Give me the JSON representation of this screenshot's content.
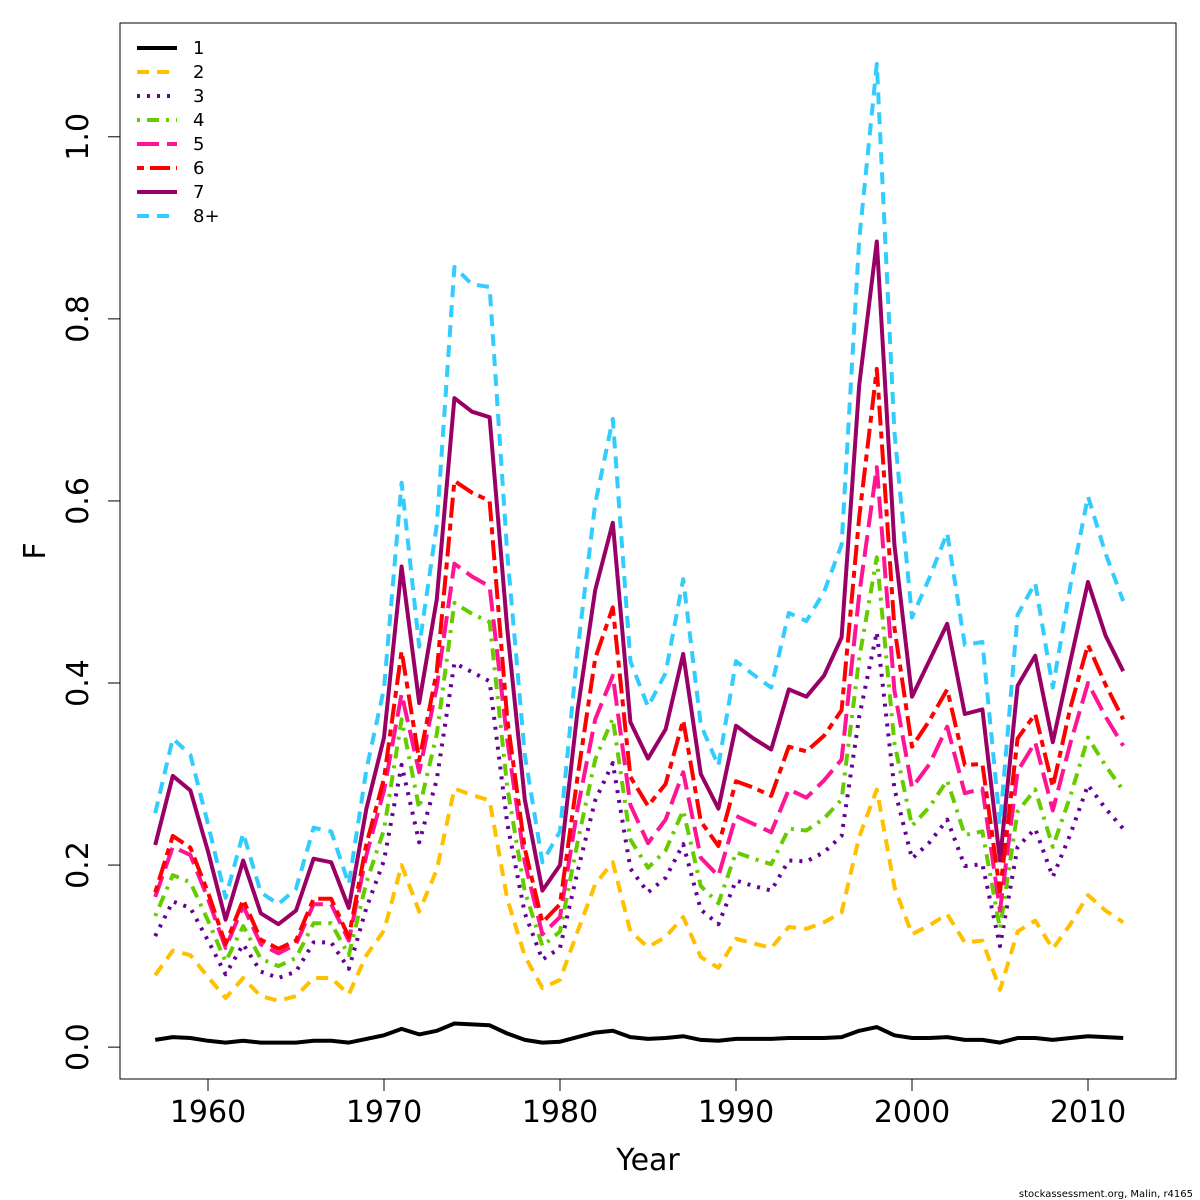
{
  "chart_data": {
    "type": "line",
    "xlabel": "Year",
    "ylabel": "F",
    "xlim": [
      1955,
      2015
    ],
    "ylim": [
      -0.035,
      1.125
    ],
    "xticks": [
      1960,
      1970,
      1980,
      1990,
      2000,
      2010
    ],
    "yticks": [
      0.0,
      0.2,
      0.4,
      0.6,
      0.8,
      1.0
    ],
    "ytick_labels": [
      "0.0",
      "0.2",
      "0.4",
      "0.6",
      "0.8",
      "1.0"
    ],
    "grid": false,
    "legend_position": "top-left",
    "x": [
      1957,
      1958,
      1959,
      1960,
      1961,
      1962,
      1963,
      1964,
      1965,
      1966,
      1967,
      1968,
      1969,
      1970,
      1971,
      1972,
      1973,
      1974,
      1975,
      1976,
      1977,
      1978,
      1979,
      1980,
      1981,
      1982,
      1983,
      1984,
      1985,
      1986,
      1987,
      1988,
      1989,
      1990,
      1991,
      1992,
      1993,
      1994,
      1995,
      1996,
      1997,
      1998,
      1999,
      2000,
      2001,
      2002,
      2003,
      2004,
      2005,
      2006,
      2007,
      2008,
      2009,
      2010,
      2011,
      2012
    ],
    "series": [
      {
        "name": "1",
        "color": "#000000",
        "dash": "solid",
        "values": [
          0.008,
          0.011,
          0.01,
          0.007,
          0.005,
          0.007,
          0.005,
          0.005,
          0.005,
          0.007,
          0.007,
          0.005,
          0.009,
          0.013,
          0.02,
          0.014,
          0.018,
          0.026,
          0.025,
          0.024,
          0.015,
          0.008,
          0.005,
          0.006,
          0.011,
          0.016,
          0.018,
          0.011,
          0.009,
          0.01,
          0.012,
          0.008,
          0.007,
          0.009,
          0.009,
          0.009,
          0.01,
          0.01,
          0.01,
          0.011,
          0.018,
          0.022,
          0.013,
          0.01,
          0.01,
          0.011,
          0.008,
          0.008,
          0.005,
          0.01,
          0.01,
          0.008,
          0.01,
          0.012,
          0.011,
          0.01
        ]
      },
      {
        "name": "2",
        "color": "#FFC000",
        "dash": "dashed",
        "values": [
          0.079,
          0.106,
          0.101,
          0.077,
          0.054,
          0.076,
          0.056,
          0.051,
          0.056,
          0.076,
          0.076,
          0.058,
          0.101,
          0.128,
          0.2,
          0.149,
          0.195,
          0.284,
          0.277,
          0.271,
          0.163,
          0.1,
          0.065,
          0.074,
          0.127,
          0.179,
          0.203,
          0.127,
          0.11,
          0.121,
          0.143,
          0.099,
          0.087,
          0.119,
          0.114,
          0.109,
          0.132,
          0.13,
          0.137,
          0.148,
          0.231,
          0.283,
          0.176,
          0.124,
          0.134,
          0.146,
          0.115,
          0.117,
          0.063,
          0.127,
          0.139,
          0.108,
          0.135,
          0.167,
          0.15,
          0.137
        ]
      },
      {
        "name": "3",
        "color": "#660099",
        "dash": "dotted",
        "values": [
          0.122,
          0.16,
          0.153,
          0.117,
          0.08,
          0.113,
          0.083,
          0.076,
          0.083,
          0.115,
          0.115,
          0.086,
          0.153,
          0.205,
          0.31,
          0.225,
          0.294,
          0.422,
          0.412,
          0.402,
          0.246,
          0.147,
          0.096,
          0.109,
          0.193,
          0.271,
          0.312,
          0.196,
          0.17,
          0.186,
          0.223,
          0.151,
          0.135,
          0.183,
          0.177,
          0.172,
          0.205,
          0.204,
          0.214,
          0.232,
          0.363,
          0.456,
          0.284,
          0.207,
          0.225,
          0.25,
          0.199,
          0.201,
          0.111,
          0.22,
          0.24,
          0.187,
          0.234,
          0.288,
          0.262,
          0.24
        ]
      },
      {
        "name": "4",
        "color": "#66CC00",
        "dash": "dotdash",
        "values": [
          0.144,
          0.189,
          0.181,
          0.139,
          0.094,
          0.133,
          0.097,
          0.089,
          0.098,
          0.136,
          0.136,
          0.101,
          0.181,
          0.239,
          0.36,
          0.262,
          0.344,
          0.488,
          0.476,
          0.467,
          0.286,
          0.171,
          0.111,
          0.127,
          0.225,
          0.316,
          0.361,
          0.228,
          0.197,
          0.216,
          0.26,
          0.177,
          0.158,
          0.214,
          0.207,
          0.201,
          0.24,
          0.238,
          0.251,
          0.272,
          0.427,
          0.538,
          0.334,
          0.243,
          0.264,
          0.293,
          0.233,
          0.237,
          0.13,
          0.259,
          0.283,
          0.22,
          0.276,
          0.34,
          0.309,
          0.282
        ]
      },
      {
        "name": "5",
        "color": "#FF1493",
        "dash": "longdash",
        "values": [
          0.165,
          0.22,
          0.211,
          0.163,
          0.109,
          0.155,
          0.113,
          0.103,
          0.113,
          0.157,
          0.157,
          0.117,
          0.211,
          0.282,
          0.388,
          0.302,
          0.396,
          0.531,
          0.517,
          0.506,
          0.338,
          0.203,
          0.124,
          0.143,
          0.262,
          0.36,
          0.408,
          0.266,
          0.224,
          0.25,
          0.302,
          0.208,
          0.188,
          0.254,
          0.245,
          0.236,
          0.283,
          0.274,
          0.293,
          0.316,
          0.497,
          0.637,
          0.392,
          0.285,
          0.311,
          0.352,
          0.279,
          0.284,
          0.15,
          0.303,
          0.335,
          0.26,
          0.334,
          0.4,
          0.363,
          0.331
        ]
      },
      {
        "name": "6",
        "color": "#FF0000",
        "dash": "twodash",
        "values": [
          0.17,
          0.232,
          0.219,
          0.17,
          0.113,
          0.162,
          0.118,
          0.108,
          0.117,
          0.163,
          0.163,
          0.121,
          0.223,
          0.295,
          0.435,
          0.315,
          0.413,
          0.622,
          0.609,
          0.6,
          0.361,
          0.218,
          0.137,
          0.157,
          0.297,
          0.427,
          0.483,
          0.297,
          0.265,
          0.289,
          0.359,
          0.248,
          0.221,
          0.292,
          0.285,
          0.276,
          0.33,
          0.325,
          0.342,
          0.37,
          0.582,
          0.745,
          0.461,
          0.33,
          0.359,
          0.393,
          0.31,
          0.311,
          0.171,
          0.339,
          0.366,
          0.286,
          0.373,
          0.442,
          0.398,
          0.36
        ]
      },
      {
        "name": "7",
        "color": "#990066",
        "dash": "solid",
        "values": [
          0.222,
          0.298,
          0.282,
          0.215,
          0.14,
          0.205,
          0.147,
          0.135,
          0.15,
          0.207,
          0.203,
          0.153,
          0.262,
          0.34,
          0.528,
          0.378,
          0.492,
          0.713,
          0.698,
          0.692,
          0.46,
          0.272,
          0.172,
          0.2,
          0.37,
          0.502,
          0.576,
          0.357,
          0.317,
          0.349,
          0.432,
          0.3,
          0.262,
          0.353,
          0.339,
          0.327,
          0.393,
          0.385,
          0.408,
          0.45,
          0.727,
          0.885,
          0.552,
          0.385,
          0.425,
          0.465,
          0.366,
          0.371,
          0.205,
          0.397,
          0.43,
          0.335,
          0.424,
          0.511,
          0.452,
          0.413
        ]
      },
      {
        "name": "8+",
        "color": "#33CCFF",
        "dash": "dashed",
        "values": [
          0.257,
          0.339,
          0.321,
          0.245,
          0.164,
          0.235,
          0.17,
          0.157,
          0.174,
          0.241,
          0.237,
          0.179,
          0.305,
          0.394,
          0.62,
          0.44,
          0.574,
          0.857,
          0.838,
          0.835,
          0.543,
          0.321,
          0.203,
          0.237,
          0.436,
          0.597,
          0.69,
          0.424,
          0.374,
          0.411,
          0.514,
          0.354,
          0.309,
          0.424,
          0.409,
          0.395,
          0.477,
          0.468,
          0.5,
          0.552,
          0.887,
          1.08,
          0.676,
          0.472,
          0.516,
          0.565,
          0.442,
          0.445,
          0.245,
          0.475,
          0.51,
          0.395,
          0.507,
          0.605,
          0.542,
          0.49
        ]
      }
    ]
  },
  "footer": {
    "credit": "stockassessment.org, Malin, r4165"
  }
}
